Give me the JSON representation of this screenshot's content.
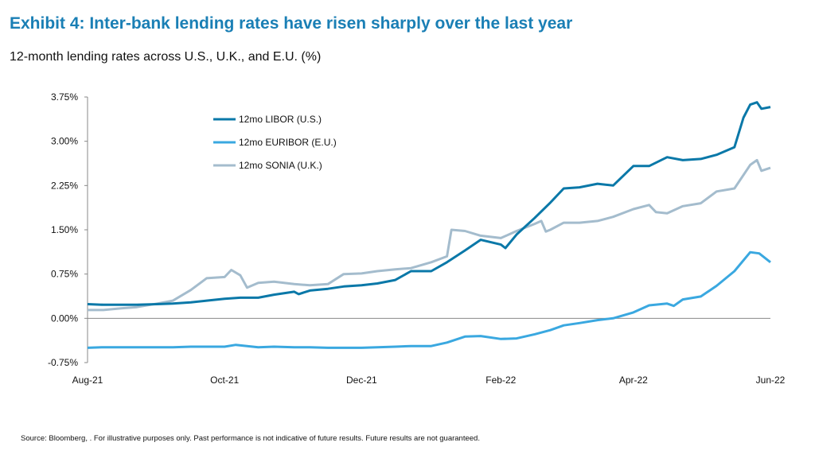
{
  "title": "Exhibit 4: Inter-bank lending rates have risen sharply over the last year",
  "subtitle": "12-month lending rates across U.S., U.K., and E.U. (%)",
  "source": "Source: Bloomberg, . For illustrative purposes only. Past performance is not indicative of future results. Future results are not guaranteed.",
  "chart_data": {
    "type": "line",
    "title": "12-month lending rates across U.S., U.K., and E.U. (%)",
    "xlabel": "",
    "ylabel": "",
    "xlim": [
      "2021-08-01",
      "2022-06-01"
    ],
    "ylim": [
      -0.75,
      3.75
    ],
    "x_ticks": [
      {
        "date": "2021-08-01",
        "label": "Aug-21"
      },
      {
        "date": "2021-10-01",
        "label": "Oct-21"
      },
      {
        "date": "2021-12-01",
        "label": "Dec-21"
      },
      {
        "date": "2022-02-01",
        "label": "Feb-22"
      },
      {
        "date": "2022-04-01",
        "label": "Apr-22"
      },
      {
        "date": "2022-06-01",
        "label": "Jun-22"
      }
    ],
    "y_ticks": [
      {
        "value": 3.75,
        "label": "3.75%"
      },
      {
        "value": 3.0,
        "label": "3.00%"
      },
      {
        "value": 2.25,
        "label": "2.25%"
      },
      {
        "value": 1.5,
        "label": "1.50%"
      },
      {
        "value": 0.75,
        "label": "0.75%"
      },
      {
        "value": 0.0,
        "label": "0.00%"
      },
      {
        "value": -0.75,
        "label": "-0.75%"
      }
    ],
    "grid": false,
    "legend_position": "top-left",
    "series": [
      {
        "name": "12mo LIBOR (U.S.)",
        "color": "#0a78a8",
        "points": [
          [
            "2021-08-01",
            0.24
          ],
          [
            "2021-08-08",
            0.23
          ],
          [
            "2021-08-16",
            0.23
          ],
          [
            "2021-08-23",
            0.23
          ],
          [
            "2021-09-01",
            0.24
          ],
          [
            "2021-09-08",
            0.25
          ],
          [
            "2021-09-16",
            0.27
          ],
          [
            "2021-09-23",
            0.3
          ],
          [
            "2021-10-01",
            0.33
          ],
          [
            "2021-10-08",
            0.35
          ],
          [
            "2021-10-16",
            0.35
          ],
          [
            "2021-10-23",
            0.4
          ],
          [
            "2021-11-01",
            0.45
          ],
          [
            "2021-11-03",
            0.41
          ],
          [
            "2021-11-08",
            0.47
          ],
          [
            "2021-11-16",
            0.5
          ],
          [
            "2021-11-23",
            0.54
          ],
          [
            "2021-12-01",
            0.56
          ],
          [
            "2021-12-08",
            0.59
          ],
          [
            "2021-12-16",
            0.65
          ],
          [
            "2021-12-23",
            0.8
          ],
          [
            "2022-01-01",
            0.8
          ],
          [
            "2022-01-08",
            0.95
          ],
          [
            "2022-01-16",
            1.15
          ],
          [
            "2022-01-23",
            1.33
          ],
          [
            "2022-02-01",
            1.25
          ],
          [
            "2022-02-03",
            1.19
          ],
          [
            "2022-02-08",
            1.42
          ],
          [
            "2022-02-16",
            1.7
          ],
          [
            "2022-02-23",
            1.96
          ],
          [
            "2022-03-01",
            2.2
          ],
          [
            "2022-03-08",
            2.22
          ],
          [
            "2022-03-16",
            2.28
          ],
          [
            "2022-03-23",
            2.25
          ],
          [
            "2022-04-01",
            2.58
          ],
          [
            "2022-04-08",
            2.58
          ],
          [
            "2022-04-16",
            2.73
          ],
          [
            "2022-04-23",
            2.68
          ],
          [
            "2022-05-01",
            2.7
          ],
          [
            "2022-05-08",
            2.77
          ],
          [
            "2022-05-16",
            2.9
          ],
          [
            "2022-05-20",
            3.4
          ],
          [
            "2022-05-23",
            3.62
          ],
          [
            "2022-05-26",
            3.66
          ],
          [
            "2022-05-28",
            3.55
          ],
          [
            "2022-06-01",
            3.58
          ]
        ]
      },
      {
        "name": "12mo EURIBOR (E.U.)",
        "color": "#3aa8e0",
        "points": [
          [
            "2021-08-01",
            -0.5
          ],
          [
            "2021-08-08",
            -0.49
          ],
          [
            "2021-08-16",
            -0.49
          ],
          [
            "2021-08-23",
            -0.49
          ],
          [
            "2021-09-01",
            -0.49
          ],
          [
            "2021-09-08",
            -0.49
          ],
          [
            "2021-09-16",
            -0.48
          ],
          [
            "2021-09-23",
            -0.48
          ],
          [
            "2021-10-01",
            -0.48
          ],
          [
            "2021-10-06",
            -0.45
          ],
          [
            "2021-10-16",
            -0.49
          ],
          [
            "2021-10-23",
            -0.48
          ],
          [
            "2021-11-01",
            -0.49
          ],
          [
            "2021-11-08",
            -0.49
          ],
          [
            "2021-11-16",
            -0.5
          ],
          [
            "2021-11-23",
            -0.5
          ],
          [
            "2021-12-01",
            -0.5
          ],
          [
            "2021-12-08",
            -0.49
          ],
          [
            "2021-12-16",
            -0.48
          ],
          [
            "2021-12-23",
            -0.47
          ],
          [
            "2022-01-01",
            -0.47
          ],
          [
            "2022-01-08",
            -0.41
          ],
          [
            "2022-01-16",
            -0.31
          ],
          [
            "2022-01-23",
            -0.3
          ],
          [
            "2022-02-01",
            -0.35
          ],
          [
            "2022-02-08",
            -0.34
          ],
          [
            "2022-02-16",
            -0.27
          ],
          [
            "2022-02-23",
            -0.2
          ],
          [
            "2022-03-01",
            -0.12
          ],
          [
            "2022-03-08",
            -0.08
          ],
          [
            "2022-03-16",
            -0.03
          ],
          [
            "2022-03-23",
            0.0
          ],
          [
            "2022-04-01",
            0.1
          ],
          [
            "2022-04-08",
            0.22
          ],
          [
            "2022-04-16",
            0.25
          ],
          [
            "2022-04-19",
            0.21
          ],
          [
            "2022-04-23",
            0.32
          ],
          [
            "2022-05-01",
            0.37
          ],
          [
            "2022-05-08",
            0.55
          ],
          [
            "2022-05-16",
            0.8
          ],
          [
            "2022-05-23",
            1.12
          ],
          [
            "2022-05-27",
            1.1
          ],
          [
            "2022-06-01",
            0.95
          ]
        ]
      },
      {
        "name": "12mo SONIA (U.K.)",
        "color": "#a4bccd",
        "points": [
          [
            "2021-08-01",
            0.14
          ],
          [
            "2021-08-08",
            0.14
          ],
          [
            "2021-08-16",
            0.17
          ],
          [
            "2021-08-23",
            0.19
          ],
          [
            "2021-09-01",
            0.25
          ],
          [
            "2021-09-08",
            0.3
          ],
          [
            "2021-09-16",
            0.48
          ],
          [
            "2021-09-23",
            0.68
          ],
          [
            "2021-10-01",
            0.7
          ],
          [
            "2021-10-04",
            0.82
          ],
          [
            "2021-10-08",
            0.73
          ],
          [
            "2021-10-11",
            0.52
          ],
          [
            "2021-10-16",
            0.6
          ],
          [
            "2021-10-23",
            0.62
          ],
          [
            "2021-11-01",
            0.58
          ],
          [
            "2021-11-08",
            0.56
          ],
          [
            "2021-11-16",
            0.58
          ],
          [
            "2021-11-23",
            0.75
          ],
          [
            "2021-12-01",
            0.76
          ],
          [
            "2021-12-08",
            0.8
          ],
          [
            "2021-12-16",
            0.83
          ],
          [
            "2021-12-23",
            0.85
          ],
          [
            "2022-01-01",
            0.95
          ],
          [
            "2022-01-08",
            1.05
          ],
          [
            "2022-01-10",
            1.5
          ],
          [
            "2022-01-16",
            1.48
          ],
          [
            "2022-01-23",
            1.4
          ],
          [
            "2022-02-01",
            1.36
          ],
          [
            "2022-02-08",
            1.48
          ],
          [
            "2022-02-16",
            1.6
          ],
          [
            "2022-02-19",
            1.65
          ],
          [
            "2022-02-21",
            1.47
          ],
          [
            "2022-02-23",
            1.5
          ],
          [
            "2022-03-01",
            1.62
          ],
          [
            "2022-03-08",
            1.62
          ],
          [
            "2022-03-16",
            1.65
          ],
          [
            "2022-03-23",
            1.72
          ],
          [
            "2022-04-01",
            1.85
          ],
          [
            "2022-04-08",
            1.92
          ],
          [
            "2022-04-11",
            1.8
          ],
          [
            "2022-04-16",
            1.78
          ],
          [
            "2022-04-23",
            1.9
          ],
          [
            "2022-05-01",
            1.95
          ],
          [
            "2022-05-08",
            2.15
          ],
          [
            "2022-05-16",
            2.2
          ],
          [
            "2022-05-23",
            2.6
          ],
          [
            "2022-05-26",
            2.68
          ],
          [
            "2022-05-28",
            2.5
          ],
          [
            "2022-06-01",
            2.55
          ]
        ]
      }
    ]
  }
}
